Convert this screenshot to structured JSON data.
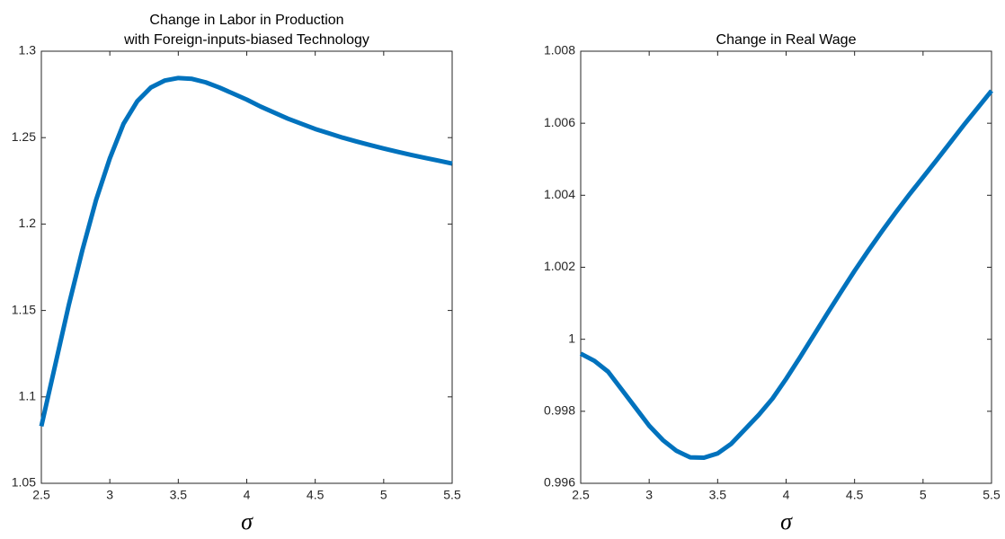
{
  "chart_data": [
    {
      "type": "line",
      "title": [
        "Change in Labor in Production",
        "with Foreign-inputs-biased Technology"
      ],
      "xlabel": "σ",
      "x": [
        2.5,
        2.6,
        2.7,
        2.8,
        2.9,
        3.0,
        3.1,
        3.2,
        3.3,
        3.4,
        3.5,
        3.6,
        3.7,
        3.8,
        3.9,
        4.0,
        4.1,
        4.2,
        4.3,
        4.4,
        4.5,
        4.6,
        4.7,
        4.8,
        4.9,
        5.0,
        5.1,
        5.2,
        5.3,
        5.4,
        5.5
      ],
      "series": [
        {
          "color": "#0072bd",
          "values": [
            1.083,
            1.118,
            1.153,
            1.185,
            1.214,
            1.238,
            1.258,
            1.271,
            1.279,
            1.283,
            1.2845,
            1.284,
            1.282,
            1.279,
            1.2755,
            1.272,
            1.268,
            1.2645,
            1.261,
            1.258,
            1.255,
            1.2525,
            1.25,
            1.2478,
            1.2457,
            1.2437,
            1.2418,
            1.24,
            1.2383,
            1.2367,
            1.235
          ]
        }
      ],
      "xlim": [
        2.5,
        5.5
      ],
      "xticks": [
        2.5,
        3,
        3.5,
        4,
        4.5,
        5,
        5.5
      ],
      "ylim": [
        1.05,
        1.3
      ],
      "yticks": [
        1.05,
        1.1,
        1.15,
        1.2,
        1.25,
        1.3
      ]
    },
    {
      "type": "line",
      "title": [
        "Change in Real Wage"
      ],
      "xlabel": "σ",
      "x": [
        2.5,
        2.6,
        2.7,
        2.8,
        2.9,
        3.0,
        3.1,
        3.2,
        3.3,
        3.4,
        3.5,
        3.6,
        3.7,
        3.8,
        3.9,
        4.0,
        4.1,
        4.2,
        4.3,
        4.4,
        4.5,
        4.6,
        4.7,
        4.8,
        4.9,
        5.0,
        5.1,
        5.2,
        5.3,
        5.4,
        5.5
      ],
      "series": [
        {
          "color": "#0072bd",
          "values": [
            0.9996,
            0.9994,
            0.9991,
            0.9986,
            0.9981,
            0.9976,
            0.9972,
            0.9969,
            0.99672,
            0.99671,
            0.99683,
            0.9971,
            0.9975,
            0.9979,
            0.99835,
            0.9989,
            0.99949,
            1.0001,
            1.00071,
            1.00131,
            1.0019,
            1.00246,
            1.003,
            1.00352,
            1.00402,
            1.0045,
            1.00498,
            1.00547,
            1.00596,
            1.00643,
            1.0069
          ]
        }
      ],
      "xlim": [
        2.5,
        5.5
      ],
      "xticks": [
        2.5,
        3,
        3.5,
        4,
        4.5,
        5,
        5.5
      ],
      "ylim": [
        0.996,
        1.008
      ],
      "yticks": [
        0.996,
        0.998,
        1,
        1.002,
        1.004,
        1.006,
        1.008
      ]
    }
  ]
}
